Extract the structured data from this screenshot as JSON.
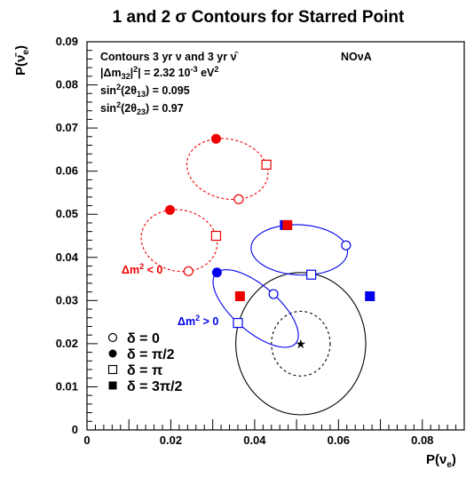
{
  "chart_data": {
    "type": "scatter",
    "title": "1 and 2 σ Contours for Starred Point",
    "xlabel": "P(νe)",
    "ylabel": "P(ν̄e)",
    "xlim": [
      0,
      0.09
    ],
    "ylim": [
      0,
      0.09
    ],
    "x_ticks": [
      "0",
      "0.02",
      "0.04",
      "0.06",
      "0.08"
    ],
    "y_ticks": [
      "0",
      "0.01",
      "0.02",
      "0.03",
      "0.04",
      "0.05",
      "0.06",
      "0.07",
      "0.08",
      "0.09"
    ],
    "info_lines": [
      "Contours 3 yr ν and 3 yr ν̄",
      "|Δm322| = 2.32 10-3 eV2",
      "sin2(2θ13) = 0.095",
      "sin2(2θ23) = 0.97"
    ],
    "experiment": "NOνA",
    "star_point": {
      "x": 0.051,
      "y": 0.02
    },
    "contours": [
      {
        "name": "1σ",
        "style": "dashed",
        "rx": 0.007,
        "ry": 0.0075
      },
      {
        "name": "2σ",
        "style": "solid",
        "rx": 0.0155,
        "ry": 0.0165
      }
    ],
    "series": [
      {
        "name": "Δm2 > 0",
        "color": "#0000ee",
        "points": [
          {
            "delta": "0",
            "x": 0.0445,
            "y": 0.0315
          },
          {
            "delta": "π/2",
            "x": 0.031,
            "y": 0.0365
          },
          {
            "delta": "π",
            "x": 0.036,
            "y": 0.0248
          },
          {
            "delta": "3π/2",
            "x": 0.0472,
            "y": 0.0475
          },
          {
            "delta": "π/2",
            "x": 0.0478,
            "y": 0.0475
          },
          {
            "delta": "0",
            "x": 0.0618,
            "y": 0.0428
          },
          {
            "delta": "π",
            "x": 0.0535,
            "y": 0.036
          },
          {
            "delta": "3π/2",
            "x": 0.0675,
            "y": 0.031
          }
        ]
      },
      {
        "name": "Δm2 < 0",
        "color": "#ee0000",
        "points": [
          {
            "delta": "π/2",
            "x": 0.0198,
            "y": 0.051
          },
          {
            "delta": "π",
            "x": 0.0308,
            "y": 0.045
          },
          {
            "delta": "0",
            "x": 0.0242,
            "y": 0.0368
          },
          {
            "delta": "3π/2",
            "x": 0.0365,
            "y": 0.031
          },
          {
            "delta": "π/2",
            "x": 0.0308,
            "y": 0.0675
          },
          {
            "delta": "π",
            "x": 0.0428,
            "y": 0.0615
          },
          {
            "delta": "0",
            "x": 0.0362,
            "y": 0.0535
          },
          {
            "delta": "3π/2",
            "x": 0.0478,
            "y": 0.0475
          }
        ]
      }
    ],
    "series_labels": {
      "normal": "Δm2 > 0",
      "inverted": "Δm2 < 0"
    },
    "legend": {
      "placement": "bottom-left",
      "entries": [
        {
          "marker": "open-circle",
          "label": "δ = 0"
        },
        {
          "marker": "filled-circle",
          "label": "δ = π/2"
        },
        {
          "marker": "open-square",
          "label": "δ = π"
        },
        {
          "marker": "filled-square",
          "label": "δ = 3π/2"
        }
      ]
    },
    "grid": false
  }
}
